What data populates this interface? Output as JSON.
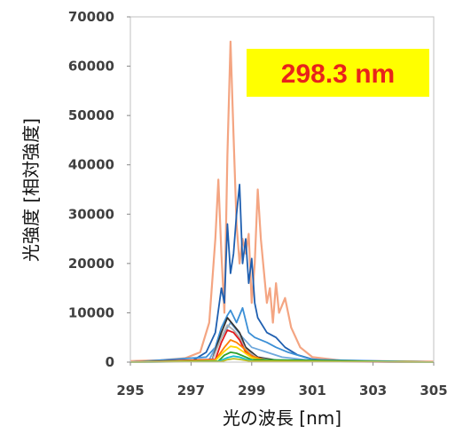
{
  "chart_data": {
    "type": "line",
    "xlabel": "光の波長 [nm]",
    "ylabel": "光強度 [相対強度]",
    "annotation": "298.3 nm",
    "annotation_bg": "#ffff00",
    "annotation_color": "#e8231b",
    "xlim": [
      295,
      305
    ],
    "ylim": [
      0,
      70000
    ],
    "xticks": [
      "295",
      "297",
      "299",
      "301",
      "303",
      "305"
    ],
    "yticks": [
      "0",
      "10000",
      "20000",
      "30000",
      "40000",
      "50000",
      "60000",
      "70000"
    ],
    "grid": false,
    "series": [
      {
        "color": "#f4a582",
        "points": [
          [
            295,
            200
          ],
          [
            296,
            400
          ],
          [
            296.8,
            800
          ],
          [
            297.3,
            2000
          ],
          [
            297.6,
            8000
          ],
          [
            297.8,
            25000
          ],
          [
            297.9,
            37000
          ],
          [
            298.0,
            22000
          ],
          [
            298.1,
            10000
          ],
          [
            298.2,
            42000
          ],
          [
            298.3,
            65000
          ],
          [
            298.4,
            46000
          ],
          [
            298.5,
            28000
          ],
          [
            298.6,
            20000
          ],
          [
            298.7,
            25000
          ],
          [
            298.8,
            22000
          ],
          [
            298.9,
            26000
          ],
          [
            299.0,
            12000
          ],
          [
            299.1,
            20000
          ],
          [
            299.2,
            35000
          ],
          [
            299.3,
            25000
          ],
          [
            299.5,
            12000
          ],
          [
            299.6,
            15000
          ],
          [
            299.7,
            8000
          ],
          [
            299.8,
            16000
          ],
          [
            299.9,
            10000
          ],
          [
            300.1,
            13000
          ],
          [
            300.3,
            7000
          ],
          [
            300.6,
            3000
          ],
          [
            301,
            1000
          ],
          [
            302,
            300
          ],
          [
            303,
            200
          ],
          [
            305,
            100
          ]
        ]
      },
      {
        "color": "#1f5fb0",
        "points": [
          [
            295,
            0
          ],
          [
            297,
            100
          ],
          [
            297.5,
            2000
          ],
          [
            297.8,
            6000
          ],
          [
            298.0,
            15000
          ],
          [
            298.1,
            12000
          ],
          [
            298.2,
            28000
          ],
          [
            298.3,
            18000
          ],
          [
            298.4,
            22000
          ],
          [
            298.5,
            30000
          ],
          [
            298.6,
            36000
          ],
          [
            298.7,
            20000
          ],
          [
            298.8,
            25000
          ],
          [
            298.9,
            16000
          ],
          [
            299.0,
            21000
          ],
          [
            299.1,
            12000
          ],
          [
            299.2,
            9000
          ],
          [
            299.5,
            6000
          ],
          [
            299.8,
            5000
          ],
          [
            300.1,
            3000
          ],
          [
            300.5,
            1500
          ],
          [
            301,
            600
          ],
          [
            302,
            100
          ],
          [
            305,
            0
          ]
        ]
      },
      {
        "color": "#3b8fd6",
        "points": [
          [
            295,
            0
          ],
          [
            297.5,
            1000
          ],
          [
            297.8,
            3000
          ],
          [
            298.0,
            7000
          ],
          [
            298.2,
            9500
          ],
          [
            298.3,
            10500
          ],
          [
            298.5,
            8000
          ],
          [
            298.7,
            11000
          ],
          [
            298.9,
            6000
          ],
          [
            299.1,
            5000
          ],
          [
            299.5,
            4000
          ],
          [
            299.8,
            3000
          ],
          [
            300.2,
            2000
          ],
          [
            301,
            500
          ],
          [
            305,
            0
          ]
        ]
      },
      {
        "color": "#6fa8dc",
        "points": [
          [
            295,
            0
          ],
          [
            297.6,
            500
          ],
          [
            297.9,
            4000
          ],
          [
            298.1,
            6000
          ],
          [
            298.3,
            8000
          ],
          [
            298.5,
            6500
          ],
          [
            298.7,
            5000
          ],
          [
            299.0,
            3000
          ],
          [
            299.5,
            2000
          ],
          [
            300,
            1000
          ],
          [
            301,
            300
          ],
          [
            305,
            0
          ]
        ]
      },
      {
        "color": "#333333",
        "points": [
          [
            295,
            0
          ],
          [
            297.7,
            500
          ],
          [
            298.0,
            6000
          ],
          [
            298.2,
            9000
          ],
          [
            298.4,
            7500
          ],
          [
            298.6,
            6000
          ],
          [
            298.8,
            3000
          ],
          [
            299.2,
            1000
          ],
          [
            300,
            200
          ],
          [
            305,
            0
          ]
        ]
      },
      {
        "color": "#b0b0b0",
        "points": [
          [
            295,
            0
          ],
          [
            297.7,
            400
          ],
          [
            298.0,
            5000
          ],
          [
            298.2,
            7500
          ],
          [
            298.4,
            6500
          ],
          [
            298.6,
            5000
          ],
          [
            298.8,
            2500
          ],
          [
            299.2,
            800
          ],
          [
            300,
            150
          ],
          [
            305,
            0
          ]
        ]
      },
      {
        "color": "#e41a1c",
        "points": [
          [
            295,
            0
          ],
          [
            297.8,
            500
          ],
          [
            298.0,
            4000
          ],
          [
            298.2,
            6500
          ],
          [
            298.4,
            6000
          ],
          [
            298.6,
            4500
          ],
          [
            298.8,
            2000
          ],
          [
            299.2,
            600
          ],
          [
            300,
            100
          ],
          [
            305,
            0
          ]
        ]
      },
      {
        "color": "#ff7f00",
        "points": [
          [
            295,
            0
          ],
          [
            297.8,
            400
          ],
          [
            298.1,
            3000
          ],
          [
            298.3,
            4500
          ],
          [
            298.5,
            4000
          ],
          [
            298.7,
            3000
          ],
          [
            299.0,
            1200
          ],
          [
            299.5,
            300
          ],
          [
            305,
            0
          ]
        ]
      },
      {
        "color": "#ffd700",
        "points": [
          [
            295,
            0
          ],
          [
            297.8,
            300
          ],
          [
            298.1,
            2200
          ],
          [
            298.3,
            3200
          ],
          [
            298.5,
            3000
          ],
          [
            298.7,
            2200
          ],
          [
            299.0,
            900
          ],
          [
            299.5,
            200
          ],
          [
            305,
            0
          ]
        ]
      },
      {
        "color": "#2ca02c",
        "points": [
          [
            295,
            0
          ],
          [
            297.9,
            200
          ],
          [
            298.1,
            1400
          ],
          [
            298.3,
            2000
          ],
          [
            298.5,
            1800
          ],
          [
            298.7,
            1300
          ],
          [
            299.0,
            500
          ],
          [
            305,
            0
          ]
        ]
      },
      {
        "color": "#17becf",
        "points": [
          [
            295,
            0
          ],
          [
            297.9,
            150
          ],
          [
            298.2,
            900
          ],
          [
            298.4,
            1200
          ],
          [
            298.6,
            1000
          ],
          [
            298.8,
            600
          ],
          [
            299.1,
            200
          ],
          [
            305,
            0
          ]
        ]
      },
      {
        "color": "#bcbd22",
        "points": [
          [
            295,
            0
          ],
          [
            298.0,
            100
          ],
          [
            298.2,
            500
          ],
          [
            298.4,
            700
          ],
          [
            298.6,
            550
          ],
          [
            298.9,
            250
          ],
          [
            305,
            0
          ]
        ]
      }
    ]
  }
}
